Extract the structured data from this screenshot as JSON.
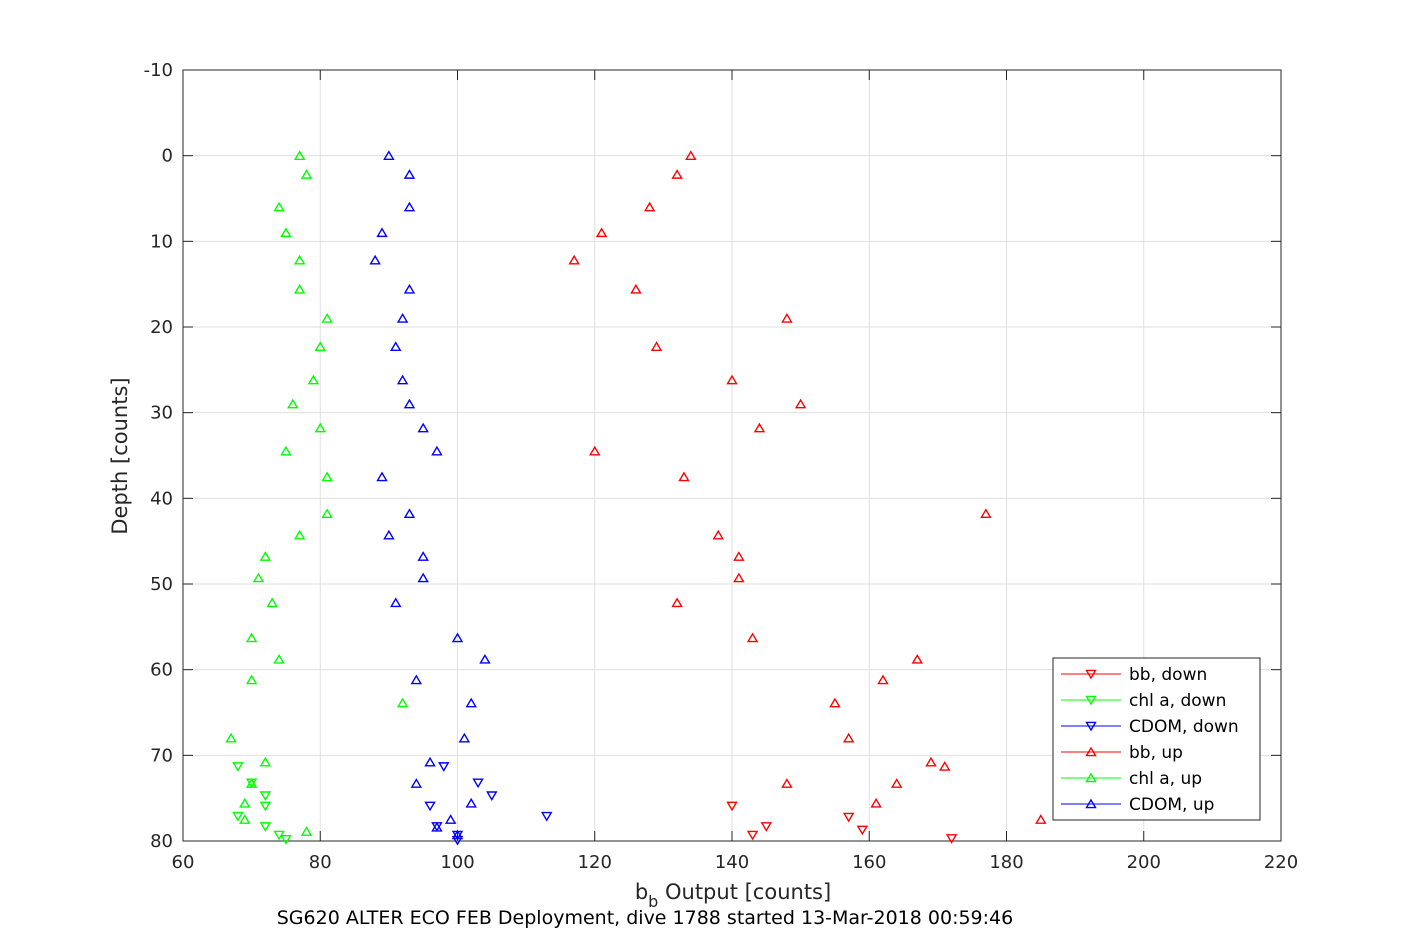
{
  "chart_data": {
    "type": "scatter",
    "xlabel_main": "b",
    "xlabel_sub": "b",
    "xlabel_rest": " Output [counts]",
    "ylabel": "Depth [counts]",
    "caption": "SG620 ALTER ECO FEB Deployment, dive 1788 started 13-Mar-2018 00:59:46",
    "xlim": [
      60,
      220
    ],
    "ylim": [
      -10,
      80
    ],
    "y_reversed": true,
    "xticks": [
      60,
      80,
      100,
      120,
      140,
      160,
      180,
      200,
      220
    ],
    "yticks": [
      -10,
      0,
      10,
      20,
      30,
      40,
      50,
      60,
      70,
      80
    ],
    "grid": true,
    "legend_position": "bottom-right",
    "colors": {
      "red": "#ff0000",
      "green": "#00ff00",
      "blue": "#0000ff"
    },
    "series": [
      {
        "name": "bb, down",
        "color": "#ff0000",
        "marker": "triangle-down",
        "points": [
          [
            140,
            75.9
          ],
          [
            145,
            78.3
          ],
          [
            143,
            79.3
          ],
          [
            157,
            77.2
          ],
          [
            159,
            78.7
          ],
          [
            172,
            79.7
          ]
        ]
      },
      {
        "name": "chl a, down",
        "color": "#00ff00",
        "marker": "triangle-down",
        "points": [
          [
            68,
            71.3
          ],
          [
            70,
            73.2
          ],
          [
            72,
            74.7
          ],
          [
            72,
            75.9
          ],
          [
            68,
            77.1
          ],
          [
            72,
            78.3
          ],
          [
            74,
            79.3
          ],
          [
            75,
            79.8
          ]
        ]
      },
      {
        "name": "CDOM, down",
        "color": "#0000ff",
        "marker": "triangle-down",
        "points": [
          [
            98,
            71.3
          ],
          [
            103,
            73.2
          ],
          [
            105,
            74.7
          ],
          [
            96,
            75.9
          ],
          [
            113,
            77.1
          ],
          [
            97,
            78.3
          ],
          [
            100,
            79.3
          ],
          [
            100,
            79.9
          ]
        ]
      },
      {
        "name": "bb, up",
        "color": "#ff0000",
        "marker": "triangle-up",
        "points": [
          [
            134,
            0
          ],
          [
            132,
            2.2
          ],
          [
            128,
            6
          ],
          [
            121,
            9
          ],
          [
            117,
            12.2
          ],
          [
            126,
            15.6
          ],
          [
            148,
            19
          ],
          [
            129,
            22.3
          ],
          [
            140,
            26.2
          ],
          [
            150,
            29
          ],
          [
            144,
            31.8
          ],
          [
            120,
            34.5
          ],
          [
            133,
            37.5
          ],
          [
            177,
            41.8
          ],
          [
            138,
            44.3
          ],
          [
            141,
            46.8
          ],
          [
            141,
            49.3
          ],
          [
            132,
            52.2
          ],
          [
            143,
            56.3
          ],
          [
            167,
            58.8
          ],
          [
            162,
            61.2
          ],
          [
            155,
            63.9
          ],
          [
            157,
            68
          ],
          [
            169,
            70.8
          ],
          [
            171,
            71.3
          ],
          [
            148,
            73.3
          ],
          [
            164,
            73.3
          ],
          [
            161,
            75.6
          ],
          [
            185,
            77.5
          ]
        ]
      },
      {
        "name": "chl a, up",
        "color": "#00ff00",
        "marker": "triangle-up",
        "points": [
          [
            77,
            0
          ],
          [
            78,
            2.2
          ],
          [
            74,
            6
          ],
          [
            75,
            9
          ],
          [
            77,
            12.2
          ],
          [
            77,
            15.6
          ],
          [
            81,
            19
          ],
          [
            80,
            22.3
          ],
          [
            79,
            26.2
          ],
          [
            76,
            29
          ],
          [
            80,
            31.8
          ],
          [
            75,
            34.5
          ],
          [
            81,
            37.5
          ],
          [
            81,
            41.8
          ],
          [
            77,
            44.3
          ],
          [
            72,
            46.8
          ],
          [
            71,
            49.3
          ],
          [
            73,
            52.2
          ],
          [
            70,
            56.3
          ],
          [
            74,
            58.8
          ],
          [
            70,
            61.2
          ],
          [
            92,
            63.9
          ],
          [
            67,
            68
          ],
          [
            72,
            70.8
          ],
          [
            70,
            73.3
          ],
          [
            69,
            75.6
          ],
          [
            69,
            77.5
          ],
          [
            78,
            78.9
          ]
        ]
      },
      {
        "name": "CDOM, up",
        "color": "#0000ff",
        "marker": "triangle-up",
        "points": [
          [
            90,
            0
          ],
          [
            93,
            2.2
          ],
          [
            93,
            6
          ],
          [
            89,
            9
          ],
          [
            88,
            12.2
          ],
          [
            93,
            15.6
          ],
          [
            92,
            19
          ],
          [
            91,
            22.3
          ],
          [
            92,
            26.2
          ],
          [
            93,
            29
          ],
          [
            95,
            31.8
          ],
          [
            97,
            34.5
          ],
          [
            89,
            37.5
          ],
          [
            93,
            41.8
          ],
          [
            90,
            44.3
          ],
          [
            95,
            46.8
          ],
          [
            95,
            49.3
          ],
          [
            91,
            52.2
          ],
          [
            100,
            56.3
          ],
          [
            104,
            58.8
          ],
          [
            94,
            61.2
          ],
          [
            102,
            63.9
          ],
          [
            101,
            68
          ],
          [
            96,
            70.8
          ],
          [
            94,
            73.3
          ],
          [
            102,
            75.6
          ],
          [
            99,
            77.5
          ],
          [
            97,
            78.4
          ],
          [
            100,
            79.3
          ]
        ]
      }
    ]
  }
}
